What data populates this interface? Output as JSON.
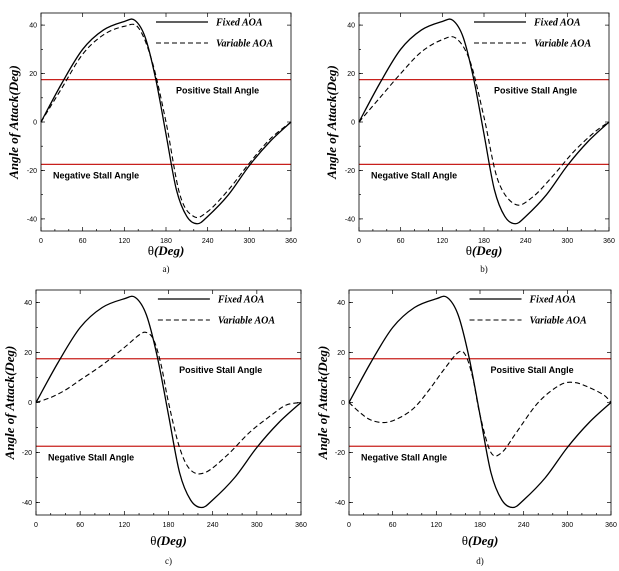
{
  "chart_data": [
    {
      "type": "line",
      "panel_label": "a)",
      "xlabel_symbol": "θ",
      "xlabel_unit": "(Deg)",
      "ylabel": "Angle of Attack(Deg)",
      "xlim": [
        0,
        360
      ],
      "ylim": [
        -45,
        45
      ],
      "xticks": [
        0,
        60,
        120,
        180,
        240,
        300,
        360
      ],
      "yticks": [
        -40,
        -20,
        0,
        20,
        40
      ],
      "grid": false,
      "legend": "top-right",
      "stall_lines": [
        {
          "value": 17.5,
          "label": "Positive Stall Angle"
        },
        {
          "value": -17.5,
          "label": "Negative Stall Angle"
        }
      ],
      "series": [
        {
          "name": "Fixed AOA",
          "style": "solid",
          "color": "#000000",
          "x": [
            0,
            30,
            60,
            90,
            120,
            135,
            150,
            165,
            180,
            195,
            210,
            225,
            240,
            270,
            300,
            330,
            360
          ],
          "y": [
            0,
            16,
            30,
            38,
            41.5,
            42,
            35,
            18,
            -5,
            -28,
            -39,
            -42,
            -39,
            -30,
            -18,
            -8,
            0
          ]
        },
        {
          "name": "Variable AOA",
          "style": "dashed",
          "color": "#000000",
          "x": [
            0,
            30,
            60,
            90,
            120,
            140,
            160,
            180,
            200,
            220,
            240,
            270,
            300,
            330,
            360
          ],
          "y": [
            0,
            14,
            28,
            36,
            39.5,
            39,
            25,
            0,
            -30,
            -39,
            -37,
            -28,
            -17,
            -7,
            0
          ]
        }
      ]
    },
    {
      "type": "line",
      "panel_label": "b)",
      "xlabel_symbol": "θ",
      "xlabel_unit": "(Deg)",
      "ylabel": "Angle of Attack(Deg)",
      "xlim": [
        0,
        360
      ],
      "ylim": [
        -45,
        45
      ],
      "xticks": [
        0,
        60,
        120,
        180,
        240,
        300,
        360
      ],
      "yticks": [
        -40,
        -20,
        0,
        20,
        40
      ],
      "grid": false,
      "legend": "top-right",
      "stall_lines": [
        {
          "value": 17.5,
          "label": "Positive Stall Angle"
        },
        {
          "value": -17.5,
          "label": "Negative Stall Angle"
        }
      ],
      "series": [
        {
          "name": "Fixed AOA",
          "style": "solid",
          "color": "#000000",
          "x": [
            0,
            30,
            60,
            90,
            120,
            135,
            150,
            165,
            180,
            195,
            210,
            225,
            240,
            270,
            300,
            330,
            360
          ],
          "y": [
            0,
            16,
            30,
            38,
            41.5,
            42,
            35,
            18,
            -5,
            -28,
            -39,
            -42,
            -39,
            -30,
            -18,
            -8,
            0
          ]
        },
        {
          "name": "Variable AOA",
          "style": "dashed",
          "color": "#000000",
          "x": [
            0,
            30,
            60,
            90,
            120,
            140,
            160,
            180,
            200,
            225,
            250,
            280,
            310,
            340,
            360
          ],
          "y": [
            0,
            10,
            20,
            29,
            34,
            34.5,
            25,
            2,
            -24,
            -34,
            -31,
            -22,
            -12,
            -4,
            0
          ]
        }
      ]
    },
    {
      "type": "line",
      "panel_label": "c)",
      "xlabel_symbol": "θ",
      "xlabel_unit": "(Deg)",
      "ylabel": "Angle of Attack(Deg)",
      "xlim": [
        0,
        360
      ],
      "ylim": [
        -45,
        45
      ],
      "xticks": [
        0,
        60,
        120,
        180,
        240,
        300,
        360
      ],
      "yticks": [
        -40,
        -20,
        0,
        20,
        40
      ],
      "grid": false,
      "legend": "top-right",
      "stall_lines": [
        {
          "value": 17.5,
          "label": "Positive Stall Angle"
        },
        {
          "value": -17.5,
          "label": "Negative Stall Angle"
        }
      ],
      "series": [
        {
          "name": "Fixed AOA",
          "style": "solid",
          "color": "#000000",
          "x": [
            0,
            30,
            60,
            90,
            120,
            135,
            150,
            165,
            180,
            195,
            210,
            225,
            240,
            270,
            300,
            330,
            360
          ],
          "y": [
            0,
            16,
            30,
            38,
            41.5,
            42,
            35,
            18,
            -5,
            -28,
            -39,
            -42,
            -39,
            -30,
            -18,
            -8,
            0
          ]
        },
        {
          "name": "Variable AOA",
          "style": "dashed",
          "color": "#000000",
          "x": [
            0,
            20,
            40,
            60,
            90,
            120,
            140,
            150,
            160,
            170,
            180,
            195,
            210,
            230,
            260,
            290,
            320,
            340,
            360
          ],
          "y": [
            0,
            2,
            5,
            9,
            15,
            22,
            27,
            28,
            25,
            15,
            0,
            -18,
            -27,
            -28,
            -21,
            -12,
            -5,
            -1,
            0
          ]
        }
      ]
    },
    {
      "type": "line",
      "panel_label": "d)",
      "xlabel_symbol": "θ",
      "xlabel_unit": "(Deg)",
      "ylabel": "Angle of Attack(Deg)",
      "xlim": [
        0,
        360
      ],
      "ylim": [
        -45,
        45
      ],
      "xticks": [
        0,
        60,
        120,
        180,
        240,
        300,
        360
      ],
      "yticks": [
        -40,
        -20,
        0,
        20,
        40
      ],
      "grid": false,
      "legend": "top-right",
      "stall_lines": [
        {
          "value": 17.5,
          "label": "Positive Stall Angle"
        },
        {
          "value": -17.5,
          "label": "Negative Stall Angle"
        }
      ],
      "series": [
        {
          "name": "Fixed AOA",
          "style": "solid",
          "color": "#000000",
          "x": [
            0,
            30,
            60,
            90,
            120,
            135,
            150,
            165,
            180,
            195,
            210,
            225,
            240,
            270,
            300,
            330,
            360
          ],
          "y": [
            0,
            16,
            30,
            38,
            41.5,
            42,
            35,
            18,
            -5,
            -28,
            -39,
            -42,
            -39,
            -30,
            -18,
            -8,
            0
          ]
        },
        {
          "name": "Variable AOA",
          "style": "dashed",
          "color": "#000000",
          "x": [
            0,
            15,
            30,
            50,
            70,
            90,
            110,
            130,
            150,
            160,
            170,
            180,
            195,
            210,
            230,
            260,
            290,
            310,
            330,
            350,
            360
          ],
          "y": [
            0,
            -4,
            -7,
            -8,
            -6,
            -2,
            5,
            13,
            20,
            19,
            10,
            -5,
            -20,
            -20,
            -12,
            0,
            7,
            8,
            6,
            3,
            0
          ]
        }
      ]
    }
  ],
  "colors": {
    "stall_line": "#c8201c",
    "curves": "#000000"
  }
}
